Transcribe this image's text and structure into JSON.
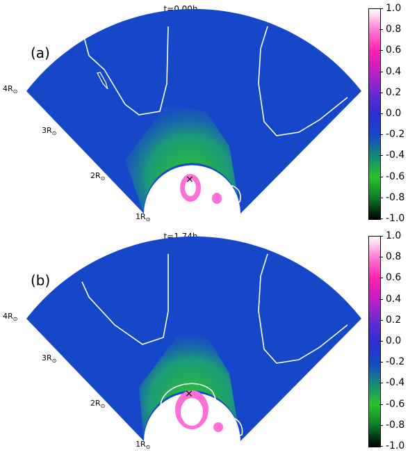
{
  "panels": [
    {
      "id": "a",
      "title": "t=0.00h",
      "label": "(a)"
    },
    {
      "id": "b",
      "title": "t=1.74h",
      "label": "(b)"
    }
  ],
  "radial_labels": [
    "1R",
    "2R",
    "3R",
    "4R"
  ],
  "sun_symbol": "⊙",
  "colorbar": {
    "ticks": [
      "1.0",
      "0.8",
      "0.6",
      "0.4",
      "0.2",
      "0.0",
      "-0.2",
      "-0.4",
      "-0.6",
      "-0.8",
      "-1.0"
    ],
    "min": -1.0,
    "max": 1.0,
    "colors": [
      "#000000",
      "#0c7a2a",
      "#2bc22b",
      "#138a78",
      "#1747c9",
      "#2d2fd0",
      "#6a2ad0",
      "#c21ec8",
      "#ff1fb0",
      "#ff7ad6",
      "#ffffff"
    ]
  },
  "markers": [
    {
      "symbol": "×",
      "name": "source-marker"
    }
  ]
}
